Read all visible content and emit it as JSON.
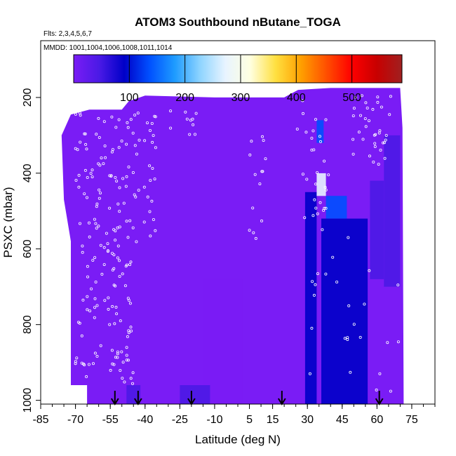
{
  "chart_data": {
    "type": "heatmap",
    "title": "ATOM3 Southbound nButane_TOGA",
    "flights_note": "Flts: 2,3,4,5,6,7",
    "dates_note": "MMDD: 1001,1004,1006,1008,1011,1014",
    "xlabel": "Latitude (deg N)",
    "ylabel": "PSXC (mbar)",
    "xlim": [
      -85,
      85
    ],
    "ylim": [
      1010,
      50
    ],
    "y_reversed": true,
    "x_ticks": [
      -85,
      -70,
      -55,
      -40,
      -25,
      -10,
      5,
      15,
      30,
      45,
      60,
      75
    ],
    "x_tick_labels": [
      "-85",
      "-70",
      "-55",
      "-40",
      "-25",
      "-10",
      "5",
      "15",
      "30",
      "45",
      "60",
      "75"
    ],
    "y_ticks": [
      200,
      400,
      600,
      800,
      1000
    ],
    "y_tick_labels": [
      "200",
      "400",
      "600",
      "800",
      "1000"
    ],
    "colorbar": {
      "min": 0,
      "max": 590,
      "ticks": [
        100,
        200,
        300,
        400,
        500
      ],
      "tick_labels": [
        "100",
        "200",
        "300",
        "400",
        "500"
      ],
      "colors": [
        "#7a1cf5",
        "#4b1ae6",
        "#0000c8",
        "#0050ff",
        "#1e9bff",
        "#8ed4ff",
        "#e8f4ff",
        "#ffffe0",
        "#ffe040",
        "#ffa000",
        "#ff5000",
        "#ff0000",
        "#c80000",
        "#a02020"
      ]
    },
    "background_value": 8,
    "regions": [
      {
        "lat": [
          29,
          34
        ],
        "p": [
          450,
          1010
        ],
        "value": 100
      },
      {
        "lat": [
          34,
          37
        ],
        "p": [
          260,
          320
        ],
        "value": 140
      },
      {
        "lat": [
          34,
          38
        ],
        "p": [
          400,
          460
        ],
        "value": 260
      },
      {
        "lat": [
          38,
          47
        ],
        "p": [
          460,
          520
        ],
        "value": 150
      },
      {
        "lat": [
          36,
          56
        ],
        "p": [
          520,
          1010
        ],
        "value": 90
      },
      {
        "lat": [
          57,
          63
        ],
        "p": [
          420,
          680
        ],
        "value": 80
      },
      {
        "lat": [
          63,
          70
        ],
        "p": [
          300,
          700
        ],
        "value": 60
      },
      {
        "lat": [
          -15,
          2
        ],
        "p": [
          680,
          1010
        ],
        "value": 35
      },
      {
        "lat": [
          -48,
          -42
        ],
        "p": [
          960,
          1010
        ],
        "value": 45
      },
      {
        "lat": [
          -25,
          -12
        ],
        "p": [
          960,
          1010
        ],
        "value": 45
      }
    ],
    "profile_arrows_lat": [
      -53,
      -43,
      -20,
      19,
      61
    ]
  }
}
